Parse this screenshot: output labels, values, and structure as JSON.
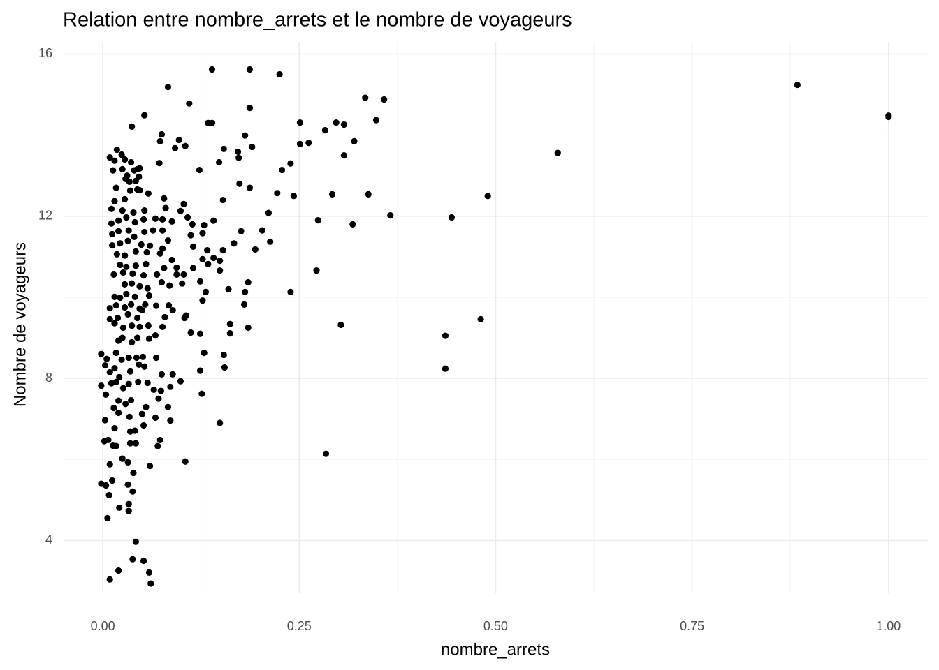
{
  "chart_data": {
    "type": "scatter",
    "title": "Relation entre nombre_arrets et le nombre de voyageurs",
    "x_label": "nombre_arrets",
    "y_label": "Nombre de voyageurs",
    "color": "#000000",
    "grid": true,
    "xlim": [
      -0.049,
      1.05
    ],
    "ylim": [
      2.7,
      16.3
    ],
    "xticks": [
      {
        "value": 0,
        "label": "0.00"
      },
      {
        "value": 0.25,
        "label": "0.25"
      },
      {
        "value": 0.5,
        "label": "0.50"
      },
      {
        "value": 0.75,
        "label": "0.75"
      },
      {
        "value": 1,
        "label": "1.00"
      }
    ],
    "yticks": [
      4,
      8,
      12,
      16
    ],
    "xminor": [
      0.125,
      0.375,
      0.625,
      0.875
    ],
    "yminor": [
      6,
      10,
      14
    ],
    "x": [
      1.0,
      1.0,
      0.884,
      0.579,
      0.49,
      0.444,
      0.366,
      0.338,
      0.318,
      0.303,
      0.481,
      0.436,
      0.436,
      0.284,
      0.274,
      0.272,
      0.334,
      0.358,
      0.348,
      0.297,
      0.307,
      0.283,
      0.32,
      0.307,
      0.292,
      0.251,
      0.262,
      0.251,
      0.239,
      0.228,
      0.243,
      0.222,
      0.211,
      0.203,
      0.213,
      0.194,
      0.239,
      0.185,
      0.181,
      0.18,
      0.185,
      0.139,
      0.187,
      0.225,
      0.187,
      0.139,
      0.181,
      0.19,
      0.154,
      0.172,
      0.173,
      0.148,
      0.174,
      0.187,
      0.153,
      0.176,
      0.167,
      0.153,
      0.141,
      0.149,
      0.149,
      0.16,
      0.162,
      0.162,
      0.154,
      0.155,
      0.149,
      0.083,
      0.11,
      0.053,
      0.037,
      0.075,
      0.097,
      0.105,
      0.092,
      0.073,
      0.123,
      0.134,
      0.103,
      0.099,
      0.108,
      0.114,
      0.129,
      0.141,
      0.127,
      0.112,
      0.133,
      0.115,
      0.127,
      0.134,
      0.115,
      0.103,
      0.124,
      0.101,
      0.131,
      0.127,
      0.106,
      0.104,
      0.124,
      0.112,
      0.129,
      0.124,
      0.126,
      0.105,
      0.099,
      0.075,
      0.089,
      0.086,
      0.086,
      0.083,
      0.009,
      0.02,
      0.038,
      0.052,
      0.042,
      0.059,
      0.061,
      0.006,
      -0.002,
      0.004,
      0.008,
      0.012,
      0.021,
      0.033,
      0.033,
      0.032,
      0.038,
      0.039,
      0.009,
      0.025,
      0.032,
      0.06,
      0.002,
      0.007,
      0.013,
      0.017,
      0.035,
      0.042,
      0.035,
      0.041,
      0.052,
      0.073,
      0.07,
      0.003,
      0.015,
      0.02,
      0.034,
      0.05,
      0.067,
      0.029,
      0.036,
      0.014,
      0.02,
      0.055,
      0.071,
      -0.002,
      0.004,
      0.011,
      0.017,
      0.026,
      0.033,
      0.045,
      0.057,
      0.065,
      0.074,
      0.003,
      0.009,
      0.015,
      0.021,
      0.035,
      0.046,
      0.053,
      -0.002,
      0.005,
      0.017,
      0.024,
      0.033,
      0.043,
      0.051,
      0.068,
      0.02,
      0.025,
      0.037,
      0.044,
      0.059,
      0.067,
      0.015,
      0.026,
      0.037,
      0.047,
      0.058,
      0.076,
      0.009,
      0.019,
      0.032,
      0.044,
      0.05,
      0.079,
      0.009,
      0.017,
      0.028,
      0.036,
      0.047,
      0.054,
      0.068,
      0.084,
      0.089,
      0.015,
      0.022,
      0.03,
      0.041,
      0.059,
      0.028,
      0.037,
      0.047,
      0.057,
      0.075,
      0.085,
      0.014,
      0.026,
      0.038,
      0.052,
      0.069,
      0.094,
      0.022,
      0.03,
      0.042,
      0.055,
      0.078,
      0.094,
      0.018,
      0.028,
      0.042,
      0.056,
      0.073,
      0.088,
      0.012,
      0.022,
      0.032,
      0.049,
      0.06,
      0.076,
      0.012,
      0.02,
      0.033,
      0.04,
      0.053,
      0.064,
      0.076,
      0.083,
      0.011,
      0.02,
      0.03,
      0.041,
      0.052,
      0.067,
      0.076,
      0.088,
      0.011,
      0.025,
      0.039,
      0.053,
      0.08,
      0.015,
      0.028,
      0.047,
      0.058,
      0.078,
      0.017,
      0.035,
      0.044,
      0.029,
      0.042,
      0.034,
      0.013,
      0.025,
      0.04,
      0.047,
      0.072,
      0.015,
      0.028,
      0.036,
      0.009,
      0.018,
      0.024,
      0.044,
      0.046,
      0.031
    ],
    "values": [
      14.45,
      14.48,
      15.24,
      13.56,
      12.5,
      11.97,
      12.02,
      12.54,
      11.8,
      9.32,
      9.46,
      9.05,
      8.24,
      6.14,
      11.9,
      10.66,
      14.92,
      14.88,
      14.37,
      14.31,
      14.26,
      14.12,
      13.85,
      13.5,
      12.54,
      14.31,
      13.81,
      13.78,
      13.3,
      13.14,
      12.5,
      12.57,
      12.08,
      11.65,
      11.37,
      11.18,
      10.13,
      10.37,
      10.13,
      9.82,
      9.25,
      15.62,
      15.62,
      15.5,
      14.67,
      14.3,
      13.99,
      13.71,
      13.66,
      13.59,
      13.44,
      13.33,
      12.8,
      12.7,
      12.4,
      11.63,
      11.33,
      11.16,
      10.97,
      10.9,
      10.66,
      10.2,
      9.34,
      9.11,
      8.58,
      8.27,
      6.9,
      15.19,
      14.78,
      14.49,
      14.21,
      14.02,
      13.88,
      13.73,
      13.68,
      13.85,
      13.14,
      14.3,
      12.3,
      12.13,
      11.97,
      11.8,
      11.78,
      11.89,
      11.58,
      11.53,
      11.16,
      11.25,
      10.94,
      10.82,
      10.72,
      10.56,
      10.39,
      10.34,
      10.13,
      9.92,
      9.55,
      9.49,
      9.1,
      9.13,
      8.63,
      8.19,
      7.62,
      5.95,
      7.93,
      8.1,
      8.1,
      7.79,
      6.96,
      7.29,
      3.04,
      3.26,
      3.54,
      3.5,
      3.97,
      3.21,
      2.94,
      4.55,
      5.4,
      5.36,
      5.12,
      5.48,
      4.81,
      4.9,
      4.73,
      5.38,
      5.21,
      5.67,
      5.88,
      6.02,
      5.93,
      5.84,
      6.45,
      6.48,
      6.34,
      6.33,
      6.4,
      6.4,
      6.69,
      6.71,
      6.84,
      6.48,
      6.33,
      6.97,
      6.77,
      7.15,
      7.05,
      7.12,
      7.03,
      7.37,
      7.46,
      7.27,
      7.45,
      7.29,
      7.5,
      7.82,
      7.6,
      7.88,
      7.91,
      7.76,
      7.86,
      7.91,
      7.89,
      7.72,
      7.69,
      8.32,
      8.15,
      8.25,
      8.03,
      8.17,
      8.34,
      8.29,
      8.6,
      8.48,
      8.63,
      8.46,
      8.51,
      8.51,
      8.53,
      8.51,
      8.93,
      9.0,
      8.89,
      9.0,
      8.98,
      9.06,
      9.36,
      9.25,
      9.3,
      9.27,
      9.3,
      9.27,
      9.46,
      9.49,
      9.58,
      9.49,
      9.68,
      9.51,
      9.73,
      9.8,
      9.75,
      9.82,
      9.72,
      9.82,
      9.79,
      9.8,
      9.68,
      10.01,
      9.99,
      10.08,
      10.01,
      10.04,
      10.32,
      10.34,
      10.27,
      10.22,
      10.37,
      10.29,
      10.56,
      10.61,
      10.58,
      10.54,
      10.56,
      10.56,
      10.8,
      10.75,
      10.78,
      10.82,
      10.72,
      10.73,
      11.06,
      11.03,
      11.13,
      11.11,
      11.08,
      10.92,
      11.28,
      11.33,
      11.39,
      11.3,
      11.27,
      11.2,
      11.56,
      11.63,
      11.65,
      11.49,
      11.61,
      11.65,
      11.65,
      11.4,
      11.82,
      11.89,
      11.97,
      11.85,
      11.92,
      11.94,
      11.92,
      11.87,
      12.18,
      12.14,
      12.09,
      12.14,
      12.2,
      12.37,
      12.42,
      12.64,
      12.56,
      12.44,
      12.7,
      12.63,
      12.66,
      12.92,
      12.87,
      12.85,
      13.13,
      13.16,
      13.13,
      13.18,
      13.31,
      13.37,
      13.4,
      13.33,
      13.45,
      13.64,
      13.52,
      13.16,
      12.97,
      13.0
    ]
  }
}
